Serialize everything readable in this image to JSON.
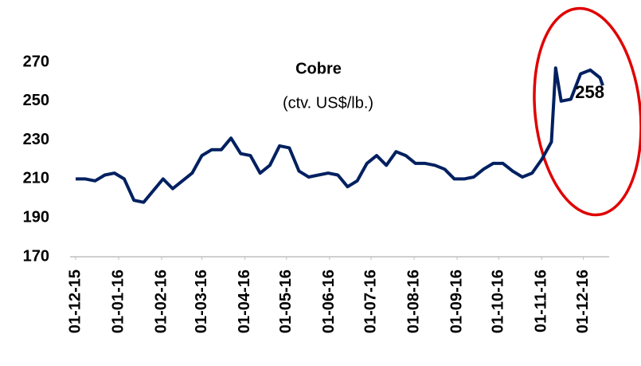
{
  "chart_data": {
    "type": "line",
    "title": "Cobre",
    "subtitle": "(ctv. US$/lb.)",
    "x": [
      "2015-12-01",
      "2015-12-08",
      "2015-12-15",
      "2015-12-22",
      "2015-12-29",
      "2016-01-05",
      "2016-01-12",
      "2016-01-19",
      "2016-01-26",
      "2016-02-02",
      "2016-02-09",
      "2016-02-16",
      "2016-02-23",
      "2016-03-01",
      "2016-03-08",
      "2016-03-15",
      "2016-03-22",
      "2016-03-29",
      "2016-04-05",
      "2016-04-12",
      "2016-04-19",
      "2016-04-26",
      "2016-05-03",
      "2016-05-10",
      "2016-05-17",
      "2016-05-24",
      "2016-05-31",
      "2016-06-07",
      "2016-06-14",
      "2016-06-21",
      "2016-06-28",
      "2016-07-05",
      "2016-07-12",
      "2016-07-19",
      "2016-07-26",
      "2016-08-02",
      "2016-08-09",
      "2016-08-16",
      "2016-08-23",
      "2016-08-30",
      "2016-09-06",
      "2016-09-13",
      "2016-09-20",
      "2016-09-27",
      "2016-10-04",
      "2016-10-11",
      "2016-10-18",
      "2016-10-25",
      "2016-11-01",
      "2016-11-08",
      "2016-11-11",
      "2016-11-15",
      "2016-11-22",
      "2016-11-29",
      "2016-12-06",
      "2016-12-13",
      "2016-12-15"
    ],
    "values": [
      210,
      210,
      209,
      212,
      213,
      210,
      199,
      198,
      204,
      210,
      205,
      209,
      213,
      222,
      225,
      225,
      231,
      223,
      222,
      213,
      217,
      227,
      226,
      214,
      211,
      212,
      213,
      212,
      206,
      209,
      218,
      222,
      217,
      224,
      222,
      218,
      218,
      217,
      215,
      210,
      210,
      211,
      215,
      218,
      218,
      214,
      211,
      213,
      220,
      229,
      267,
      250,
      251,
      264,
      266,
      262,
      258
    ],
    "color": "#002060",
    "ylim": [
      170,
      270
    ],
    "yticks": [
      170,
      190,
      210,
      230,
      250,
      270
    ],
    "xlim": [
      "2015-12-01",
      "2016-12-15"
    ],
    "xticks": [
      {
        "value": "2015-12-01",
        "label": "01-12-15"
      },
      {
        "value": "2016-01-01",
        "label": "01-01-16"
      },
      {
        "value": "2016-02-01",
        "label": "01-02-16"
      },
      {
        "value": "2016-03-01",
        "label": "01-03-16"
      },
      {
        "value": "2016-04-01",
        "label": "01-04-16"
      },
      {
        "value": "2016-05-01",
        "label": "01-05-16"
      },
      {
        "value": "2016-06-01",
        "label": "01-06-16"
      },
      {
        "value": "2016-07-01",
        "label": "01-07-16"
      },
      {
        "value": "2016-08-01",
        "label": "01-08-16"
      },
      {
        "value": "2016-09-01",
        "label": "01-09-16"
      },
      {
        "value": "2016-10-01",
        "label": "01-10-16"
      },
      {
        "value": "2016-11-01",
        "label": "01-11-16"
      },
      {
        "value": "2016-12-01",
        "label": "01-12-16"
      }
    ]
  }
}
